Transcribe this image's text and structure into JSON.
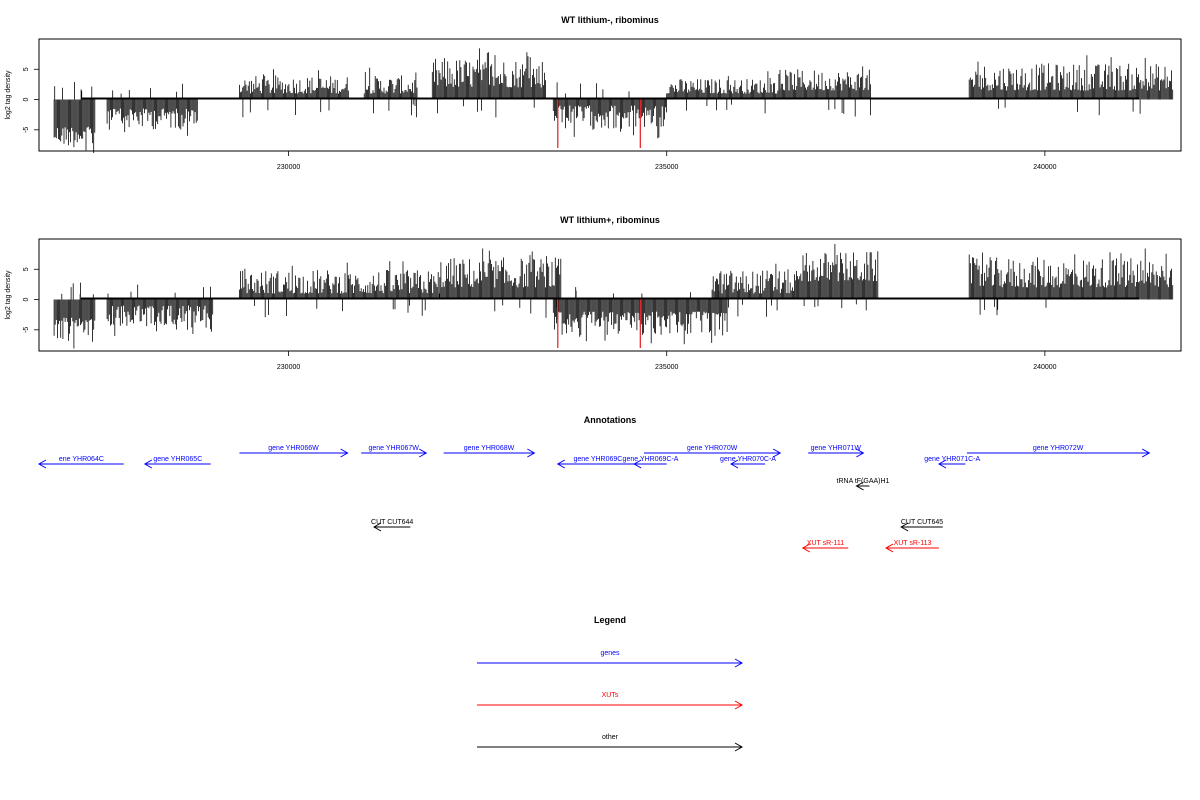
{
  "chart_data": [
    {
      "type": "bar",
      "title": "WT lithium-, ribominus",
      "ylabel": "log2 tag density",
      "xlim": [
        226700,
        241800
      ],
      "ylim": [
        -8.5,
        10
      ],
      "yticks": [
        -5,
        0,
        5
      ],
      "xticks": [
        230000,
        235000,
        240000
      ],
      "highlight_color": "#e31a1c",
      "highlights": [
        {
          "x": 233560,
          "y": -8
        },
        {
          "x": 234650,
          "y": -8
        }
      ],
      "segments": [
        {
          "from": 226900,
          "to": 227450,
          "strand": "minus",
          "min": 4.5,
          "max": 8
        },
        {
          "from": 227600,
          "to": 228800,
          "strand": "minus",
          "min": 1.5,
          "max": 5
        },
        {
          "from": 229350,
          "to": 230800,
          "strand": "plus",
          "min": 1,
          "max": 4
        },
        {
          "from": 231000,
          "to": 231700,
          "strand": "plus",
          "min": 1,
          "max": 4
        },
        {
          "from": 231900,
          "to": 233400,
          "strand": "plus",
          "min": 2,
          "max": 7
        },
        {
          "from": 233500,
          "to": 235000,
          "strand": "minus",
          "min": 1,
          "max": 5
        },
        {
          "from": 235000,
          "to": 236500,
          "strand": "plus",
          "min": 1,
          "max": 3.5
        },
        {
          "from": 236500,
          "to": 237700,
          "strand": "plus",
          "min": 1.5,
          "max": 5
        },
        {
          "from": 239000,
          "to": 241700,
          "strand": "plus",
          "min": 1.5,
          "max": 6
        }
      ]
    },
    {
      "type": "bar",
      "title": "WT lithium+, ribominus",
      "ylabel": "log2 tag density",
      "xlim": [
        226700,
        241800
      ],
      "ylim": [
        -8.5,
        10
      ],
      "yticks": [
        -5,
        0,
        5
      ],
      "xticks": [
        230000,
        235000,
        240000
      ],
      "highlight_color": "#e31a1c",
      "highlights": [
        {
          "x": 233560,
          "y": -8
        },
        {
          "x": 234650,
          "y": -8
        }
      ],
      "segments": [
        {
          "from": 226900,
          "to": 227450,
          "strand": "minus",
          "min": 3,
          "max": 7
        },
        {
          "from": 227600,
          "to": 229000,
          "strand": "minus",
          "min": 1,
          "max": 5
        },
        {
          "from": 229350,
          "to": 230800,
          "strand": "plus",
          "min": 1,
          "max": 5
        },
        {
          "from": 230800,
          "to": 232000,
          "strand": "plus",
          "min": 1,
          "max": 5
        },
        {
          "from": 232000,
          "to": 233600,
          "strand": "plus",
          "min": 2,
          "max": 7
        },
        {
          "from": 233500,
          "to": 235800,
          "strand": "minus",
          "min": 2,
          "max": 6
        },
        {
          "from": 235600,
          "to": 236700,
          "strand": "plus",
          "min": 1,
          "max": 5
        },
        {
          "from": 236700,
          "to": 237800,
          "strand": "plus",
          "min": 3,
          "max": 8
        },
        {
          "from": 239000,
          "to": 241700,
          "strand": "plus",
          "min": 2,
          "max": 7
        }
      ]
    }
  ],
  "annotations": {
    "title": "Annotations",
    "genes_color": "#0000ff",
    "xuts_color": "#ff0000",
    "other_color": "#000000",
    "features": [
      {
        "label": "ene YHR064C",
        "category": "genes",
        "start": 226700,
        "end": 227820,
        "dir": "left",
        "track": 2
      },
      {
        "label": "gene YHR065C",
        "category": "genes",
        "start": 228100,
        "end": 228970,
        "dir": "left",
        "track": 2
      },
      {
        "label": "gene YHR066W",
        "category": "genes",
        "start": 229350,
        "end": 230780,
        "dir": "right",
        "track": 1
      },
      {
        "label": "gene YHR067W",
        "category": "genes",
        "start": 230960,
        "end": 231820,
        "dir": "right",
        "track": 1
      },
      {
        "label": "gene YHR068W",
        "category": "genes",
        "start": 232050,
        "end": 233250,
        "dir": "right",
        "track": 1
      },
      {
        "label": "gene YHR069C",
        "category": "genes",
        "start": 233560,
        "end": 234620,
        "dir": "left",
        "track": 2
      },
      {
        "label": "gene YHR069C-A",
        "category": "genes",
        "start": 234570,
        "end": 235000,
        "dir": "left",
        "track": 2
      },
      {
        "label": "gene YHR070W",
        "category": "genes",
        "start": 234700,
        "end": 236500,
        "dir": "right",
        "track": 1
      },
      {
        "label": "gene YHR070C-A",
        "category": "genes",
        "start": 235850,
        "end": 236300,
        "dir": "left",
        "track": 2
      },
      {
        "label": "gene YHR071W",
        "category": "genes",
        "start": 236870,
        "end": 237600,
        "dir": "right",
        "track": 1
      },
      {
        "label": "gene YHR071C-A",
        "category": "genes",
        "start": 238600,
        "end": 238950,
        "dir": "left",
        "track": 2
      },
      {
        "label": "gene YHR072W",
        "category": "genes",
        "start": 238970,
        "end": 241380,
        "dir": "right",
        "track": 1
      },
      {
        "label": "tRNA tF(GAA)H1",
        "category": "other",
        "start": 237510,
        "end": 237680,
        "dir": "left",
        "track": 3
      },
      {
        "label": "CUT CUT644",
        "category": "other",
        "start": 231130,
        "end": 231610,
        "dir": "left",
        "track": 5
      },
      {
        "label": "CUT CUT645",
        "category": "other",
        "start": 238100,
        "end": 238650,
        "dir": "left",
        "track": 5
      },
      {
        "label": "XUT sR-111",
        "category": "xuts",
        "start": 236800,
        "end": 237400,
        "dir": "left",
        "track": 6
      },
      {
        "label": "XUT sR-113",
        "category": "xuts",
        "start": 237900,
        "end": 238600,
        "dir": "left",
        "track": 6
      }
    ]
  },
  "legend": {
    "title": "Legend",
    "items": [
      {
        "label": "genes",
        "color": "#0000ff"
      },
      {
        "label": "XUTs",
        "color": "#ff0000"
      },
      {
        "label": "other",
        "color": "#000000"
      }
    ]
  }
}
